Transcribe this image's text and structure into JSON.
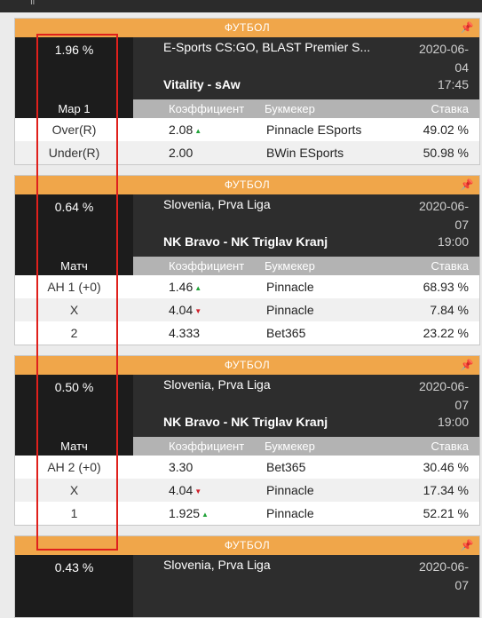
{
  "colors": {
    "category_bar": "#f0a64a",
    "dark_panel": "#1c1c1c",
    "header_grey": "#b3b3b3",
    "arrow_up": "#22a33a",
    "arrow_down": "#d0202a",
    "highlight_box": "#e0201c"
  },
  "icons": {
    "pin": "pin-icon"
  },
  "columns": {
    "coef": "Коэффициент",
    "book": "Букмекер",
    "stake": "Ставка"
  },
  "cards": [
    {
      "category": "ФУТБОЛ",
      "percent": "1.96 %",
      "league": "E-Sports CS:GO, BLAST Premier S...",
      "date_line1": "2020-06-",
      "date_line2": "04",
      "match": "Vitality - sAw",
      "time": "17:45",
      "market": "Map 1",
      "rows": [
        {
          "outcome": "Over(R)",
          "coef": "2.08",
          "arrow": "up",
          "book": "Pinnacle ESports",
          "stake": "49.02 %"
        },
        {
          "outcome": "Under(R)",
          "coef": "2.00",
          "arrow": "",
          "book": "BWin ESports",
          "stake": "50.98 %"
        }
      ]
    },
    {
      "category": "ФУТБОЛ",
      "percent": "0.64 %",
      "league": "Slovenia, Prva Liga",
      "date_line1": "2020-06-",
      "date_line2": "07",
      "match": "NK Bravo - NK Triglav Kranj",
      "time": "19:00",
      "market": "Матч",
      "rows": [
        {
          "outcome": "AH 1 (+0)",
          "coef": "1.46",
          "arrow": "up",
          "book": "Pinnacle",
          "stake": "68.93 %"
        },
        {
          "outcome": "X",
          "coef": "4.04",
          "arrow": "down",
          "book": "Pinnacle",
          "stake": "7.84 %"
        },
        {
          "outcome": "2",
          "coef": "4.333",
          "arrow": "",
          "book": "Bet365",
          "stake": "23.22 %"
        }
      ]
    },
    {
      "category": "ФУТБОЛ",
      "percent": "0.50 %",
      "league": "Slovenia, Prva Liga",
      "date_line1": "2020-06-",
      "date_line2": "07",
      "match": "NK Bravo - NK Triglav Kranj",
      "time": "19:00",
      "market": "Матч",
      "rows": [
        {
          "outcome": "AH 2 (+0)",
          "coef": "3.30",
          "arrow": "",
          "book": "Bet365",
          "stake": "30.46 %"
        },
        {
          "outcome": "X",
          "coef": "4.04",
          "arrow": "down",
          "book": "Pinnacle",
          "stake": "17.34 %"
        },
        {
          "outcome": "1",
          "coef": "1.925",
          "arrow": "up",
          "book": "Pinnacle",
          "stake": "52.21 %"
        }
      ]
    },
    {
      "category": "ФУТБОЛ",
      "percent": "0.43 %",
      "league": "Slovenia, Prva Liga",
      "date_line1": "2020-06-",
      "date_line2": "07"
    }
  ]
}
